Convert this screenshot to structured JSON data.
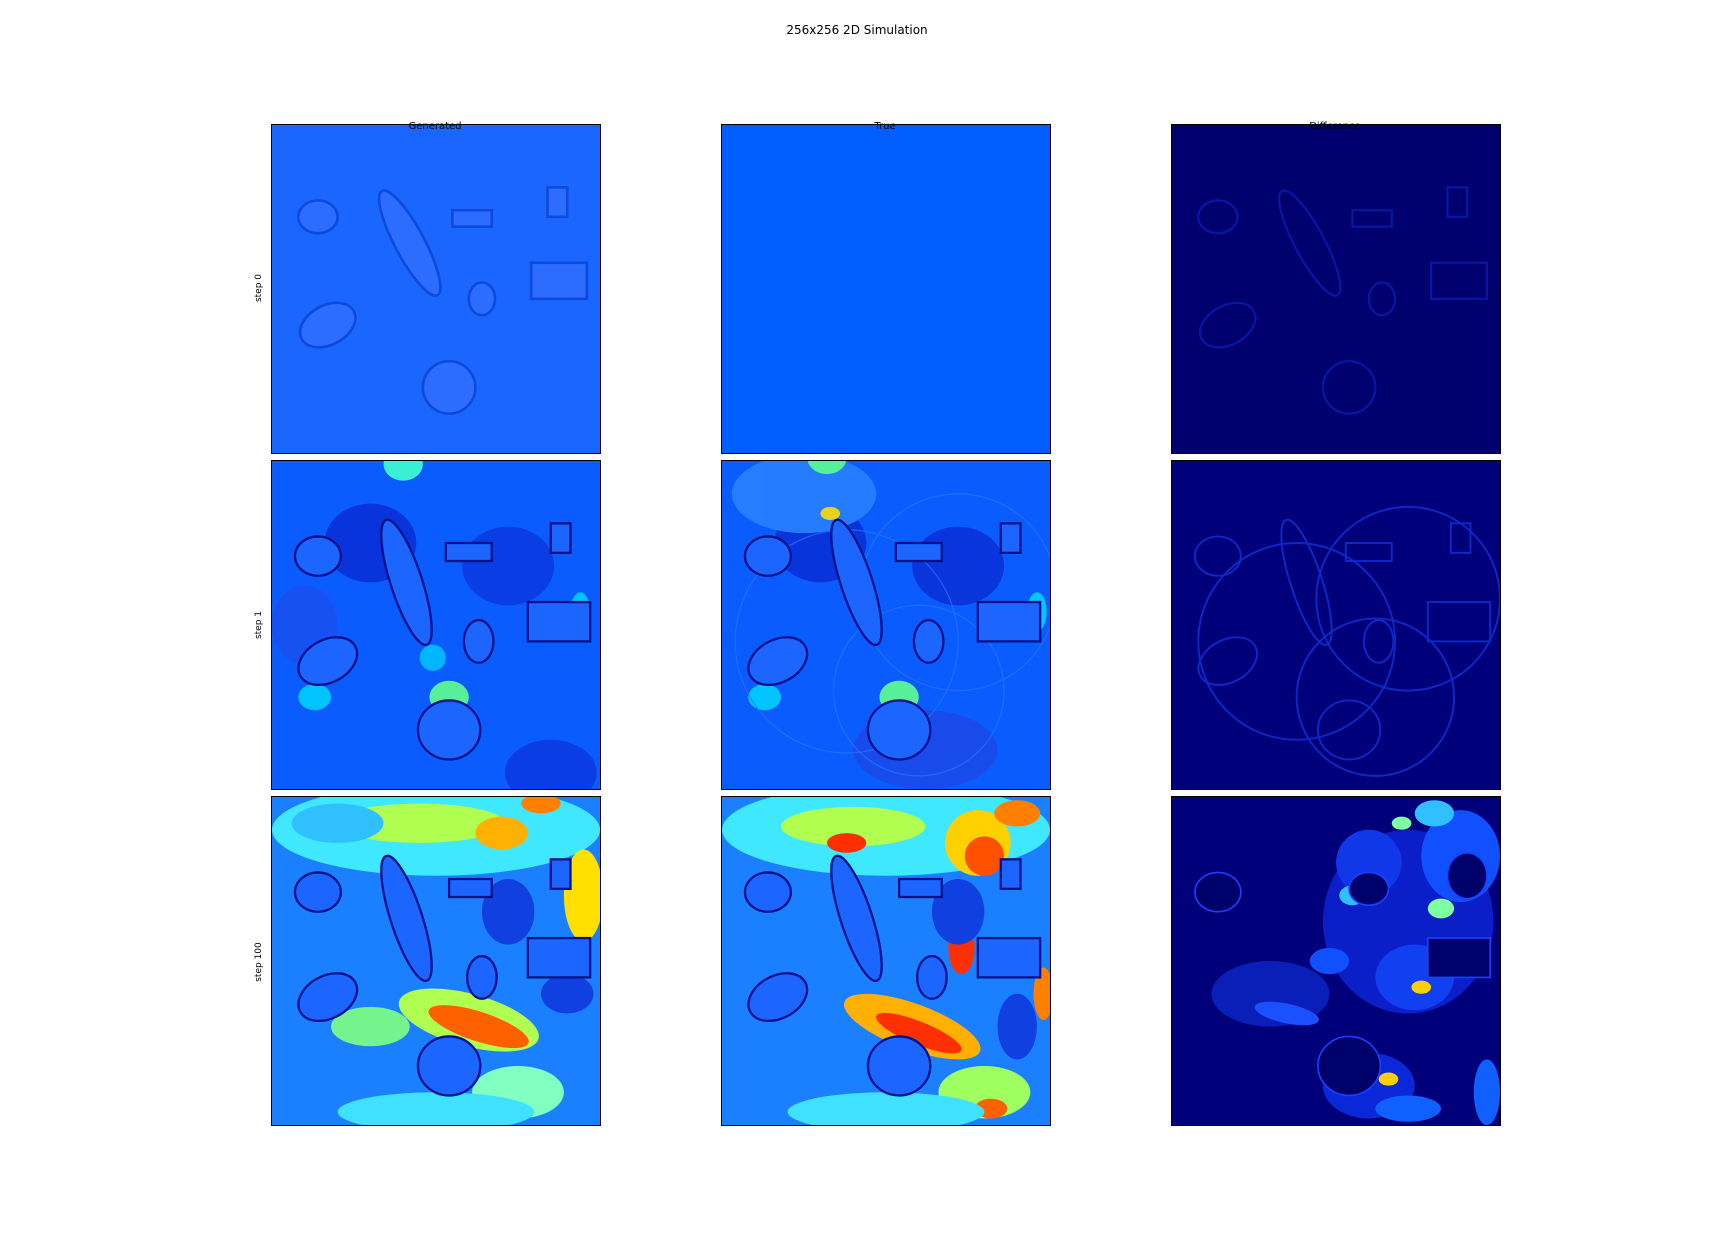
{
  "figure": {
    "title": "256x256 2D Simulation"
  },
  "columns": [
    {
      "id": "generated",
      "label": "Generated"
    },
    {
      "id": "true",
      "label": "True"
    },
    {
      "id": "difference",
      "label": "Difference"
    }
  ],
  "rows": [
    {
      "id": "step0",
      "label": "step 0"
    },
    {
      "id": "step1",
      "label": "step 1"
    },
    {
      "id": "step100",
      "label": "step 100"
    }
  ],
  "colors": {
    "colormap": "jet",
    "base_field": "#0059ff",
    "flat_field": "#005dff",
    "difference_base": "#00006e",
    "frame": "#000000"
  },
  "chart_data": {
    "type": "heatmap",
    "title": "256x256 2D Simulation",
    "grid": {
      "rows": [
        "step 0",
        "step 1",
        "step 100"
      ],
      "columns": [
        "Generated",
        "True",
        "Difference"
      ]
    },
    "resolution": [
      256,
      256
    ],
    "colormap": "jet",
    "axes_ticks": false,
    "colorbar": false
  }
}
